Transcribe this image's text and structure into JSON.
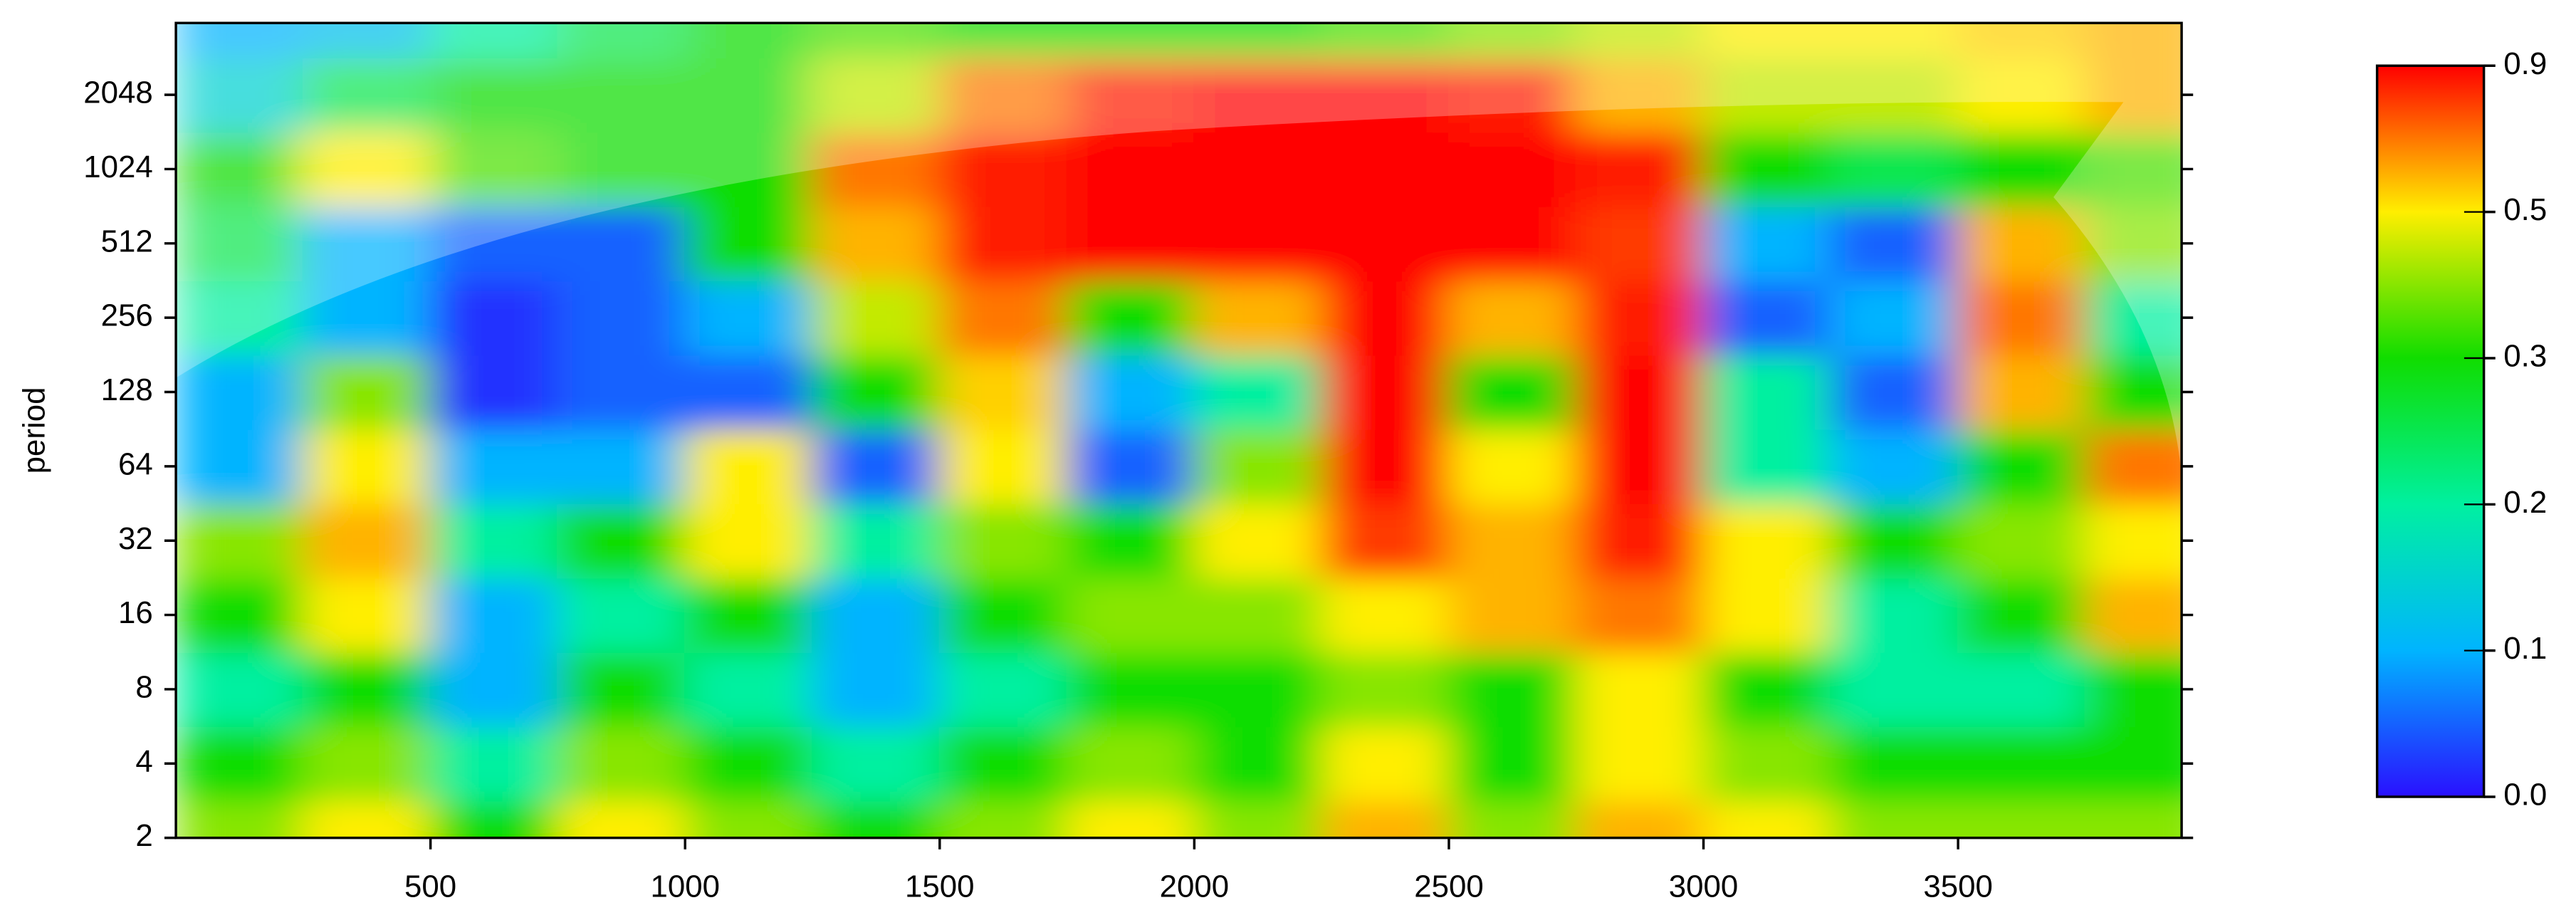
{
  "chart_data": {
    "type": "heatmap",
    "ylabel": "period",
    "x": [
      125,
      375,
      625,
      875,
      1125,
      1375,
      1625,
      1875,
      2125,
      2375,
      2625,
      2875,
      3125,
      3375,
      3625,
      3875
    ],
    "y": [
      2,
      4,
      8,
      16,
      32,
      64,
      128,
      256,
      512,
      1024,
      2048,
      4096
    ],
    "z": [
      [
        0.4,
        0.5,
        0.3,
        0.5,
        0.4,
        0.3,
        0.4,
        0.5,
        0.4,
        0.6,
        0.4,
        0.6,
        0.5,
        0.4,
        0.4,
        0.4
      ],
      [
        0.3,
        0.4,
        0.2,
        0.4,
        0.3,
        0.2,
        0.3,
        0.4,
        0.3,
        0.5,
        0.3,
        0.5,
        0.4,
        0.3,
        0.3,
        0.3
      ],
      [
        0.2,
        0.3,
        0.1,
        0.3,
        0.2,
        0.1,
        0.2,
        0.3,
        0.3,
        0.4,
        0.3,
        0.5,
        0.3,
        0.2,
        0.2,
        0.3
      ],
      [
        0.3,
        0.5,
        0.1,
        0.2,
        0.3,
        0.1,
        0.3,
        0.4,
        0.4,
        0.5,
        0.6,
        0.7,
        0.5,
        0.2,
        0.3,
        0.6
      ],
      [
        0.4,
        0.6,
        0.2,
        0.3,
        0.5,
        0.2,
        0.4,
        0.3,
        0.5,
        0.8,
        0.6,
        0.85,
        0.5,
        0.3,
        0.4,
        0.5
      ],
      [
        0.1,
        0.5,
        0.1,
        0.1,
        0.5,
        0.05,
        0.5,
        0.05,
        0.4,
        0.9,
        0.5,
        0.9,
        0.2,
        0.1,
        0.3,
        0.7
      ],
      [
        0.1,
        0.4,
        0.02,
        0.05,
        0.05,
        0.3,
        0.55,
        0.1,
        0.2,
        0.9,
        0.3,
        0.9,
        0.2,
        0.05,
        0.6,
        0.3
      ],
      [
        0.2,
        0.1,
        0.02,
        0.05,
        0.1,
        0.45,
        0.7,
        0.3,
        0.6,
        0.9,
        0.6,
        0.85,
        0.05,
        0.1,
        0.7,
        0.2
      ],
      [
        0.25,
        0.1,
        0.05,
        0.05,
        0.3,
        0.6,
        0.85,
        0.9,
        0.9,
        0.9,
        0.9,
        0.8,
        0.1,
        0.05,
        0.6,
        0.4
      ],
      [
        0.3,
        0.5,
        0.35,
        0.3,
        0.3,
        0.7,
        0.85,
        0.9,
        0.9,
        0.9,
        0.9,
        0.85,
        0.3,
        0.25,
        0.3,
        0.35
      ],
      [
        0.15,
        0.25,
        0.3,
        0.3,
        0.3,
        0.45,
        0.7,
        0.85,
        0.9,
        0.9,
        0.85,
        0.6,
        0.45,
        0.45,
        0.5,
        0.6
      ],
      [
        0.1,
        0.12,
        0.2,
        0.25,
        0.3,
        0.35,
        0.3,
        0.3,
        0.3,
        0.35,
        0.4,
        0.45,
        0.5,
        0.5,
        0.55,
        0.6
      ]
    ],
    "xlim": [
      0,
      3939
    ],
    "xticks": [
      500,
      1000,
      1500,
      2000,
      2500,
      3000,
      3500
    ],
    "ylim": [
      2,
      4000
    ],
    "log_y": true,
    "log_base": 2,
    "yticks": [
      2,
      4,
      8,
      16,
      32,
      64,
      128,
      256,
      512,
      1024,
      2048
    ],
    "zticks": [
      {
        "value": 0,
        "label": "0.0"
      },
      0.1,
      0.2,
      0.3,
      0.5,
      0.9
    ],
    "colors": [
      "#2a10ff",
      "#00b4ff",
      "#00f0a0",
      "#10dd00",
      "#ffee00",
      "#ff0000"
    ]
  }
}
